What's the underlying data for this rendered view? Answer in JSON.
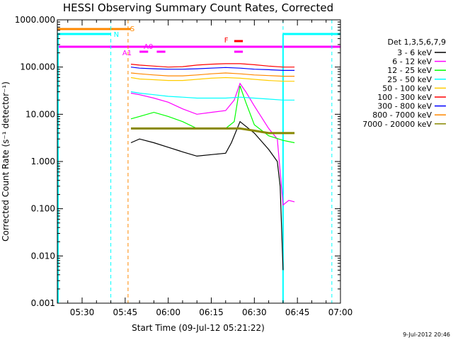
{
  "chart_data": {
    "type": "line",
    "title": "HESSI Observing Summary Count Rates, Corrected",
    "xlabel": "Start Time (09-Jul-12 05:21:22)",
    "ylabel": "Corrected Count Rate (s⁻¹ detector⁻¹)",
    "y_scale": "log",
    "ylim": [
      0.001,
      1000
    ],
    "xlim": [
      "05:21:22",
      "07:00:00"
    ],
    "y_ticks": [
      "0.001",
      "0.010",
      "0.100",
      "1.000",
      "10.000",
      "100.000",
      "1000.000"
    ],
    "x_ticks": [
      "05:30",
      "05:45",
      "06:00",
      "06:15",
      "06:30",
      "06:45",
      "07:00"
    ],
    "legend_title": "Det 1,3,5,6,7,9",
    "legend_position": "right",
    "series": [
      {
        "name": "3 - 6 keV",
        "color": "#000000",
        "x": [
          "05:47",
          "05:50",
          "05:55",
          "06:00",
          "06:05",
          "06:10",
          "06:15",
          "06:20",
          "06:22",
          "06:25",
          "06:30",
          "06:35",
          "06:38",
          "06:39",
          "06:40"
        ],
        "values": [
          2.5,
          3.0,
          2.5,
          2.0,
          1.6,
          1.3,
          1.4,
          1.5,
          2.5,
          7.0,
          4.0,
          1.8,
          1.0,
          0.3,
          0.005
        ]
      },
      {
        "name": "6 - 12 keV",
        "color": "#ff00ff",
        "x": [
          "05:47",
          "05:50",
          "05:55",
          "06:00",
          "06:05",
          "06:10",
          "06:15",
          "06:20",
          "06:23",
          "06:25",
          "06:27",
          "06:30",
          "06:35",
          "06:38",
          "06:40",
          "06:42",
          "06:44"
        ],
        "values": [
          28,
          26,
          22,
          18,
          13,
          10,
          11,
          12,
          20,
          45,
          30,
          15,
          5,
          3,
          0.12,
          0.15,
          0.14
        ]
      },
      {
        "name": "12 - 25 keV",
        "color": "#00ff00",
        "x": [
          "05:47",
          "05:50",
          "05:55",
          "06:00",
          "06:05",
          "06:10",
          "06:15",
          "06:20",
          "06:23",
          "06:25",
          "06:27",
          "06:30",
          "06:35",
          "06:40",
          "06:44"
        ],
        "values": [
          8,
          9,
          11,
          9,
          7,
          5,
          5,
          5,
          7,
          40,
          18,
          6,
          3.5,
          2.8,
          2.5
        ]
      },
      {
        "name": "25 - 50 keV",
        "color": "#00ffff",
        "x": [
          "05:47",
          "05:50",
          "05:55",
          "06:00",
          "06:05",
          "06:10",
          "06:15",
          "06:20",
          "06:25",
          "06:30",
          "06:35",
          "06:40",
          "06:44"
        ],
        "values": [
          30,
          28,
          26,
          24,
          23,
          22,
          22,
          22,
          23,
          22,
          21,
          20,
          20
        ]
      },
      {
        "name": "50 - 100 keV",
        "color": "#ffcc00",
        "x": [
          "05:47",
          "05:50",
          "05:55",
          "06:00",
          "06:05",
          "06:10",
          "06:15",
          "06:20",
          "06:25",
          "06:30",
          "06:35",
          "06:40",
          "06:44"
        ],
        "values": [
          60,
          56,
          54,
          52,
          52,
          55,
          58,
          60,
          58,
          55,
          52,
          50,
          50
        ]
      },
      {
        "name": "100 - 300 keV",
        "color": "#ff0000",
        "x": [
          "05:47",
          "05:50",
          "05:55",
          "06:00",
          "06:05",
          "06:10",
          "06:15",
          "06:20",
          "06:25",
          "06:30",
          "06:35",
          "06:40",
          "06:44"
        ],
        "values": [
          115,
          110,
          105,
          100,
          102,
          110,
          115,
          118,
          118,
          112,
          105,
          100,
          100
        ]
      },
      {
        "name": "300 - 800 keV",
        "color": "#0000ff",
        "x": [
          "05:47",
          "05:50",
          "05:55",
          "06:00",
          "06:05",
          "06:10",
          "06:15",
          "06:20",
          "06:25",
          "06:30",
          "06:35",
          "06:40",
          "06:44"
        ],
        "values": [
          100,
          95,
          92,
          90,
          90,
          92,
          95,
          98,
          95,
          90,
          88,
          85,
          85
        ]
      },
      {
        "name": "800 - 7000 keV",
        "color": "#ff8800",
        "x": [
          "05:47",
          "05:50",
          "05:55",
          "06:00",
          "06:05",
          "06:10",
          "06:15",
          "06:20",
          "06:25",
          "06:30",
          "06:35",
          "06:40",
          "06:44"
        ],
        "values": [
          75,
          72,
          68,
          65,
          65,
          68,
          72,
          75,
          72,
          68,
          66,
          64,
          64
        ]
      },
      {
        "name": "7000 - 20000 keV",
        "color": "#888800",
        "x": [
          "05:47",
          "05:50",
          "05:55",
          "06:00",
          "06:05",
          "06:10",
          "06:15",
          "06:20",
          "06:25",
          "06:30",
          "06:35",
          "06:40",
          "06:44"
        ],
        "values": [
          5,
          5,
          5,
          5,
          5,
          5,
          5,
          5,
          5,
          4.5,
          4,
          4,
          4
        ]
      }
    ],
    "annotations": {
      "S": "S",
      "N": "N",
      "A1": "A1",
      "A0": "A0",
      "F": "F"
    },
    "timestamp": "9-Jul-2012 20:46"
  }
}
